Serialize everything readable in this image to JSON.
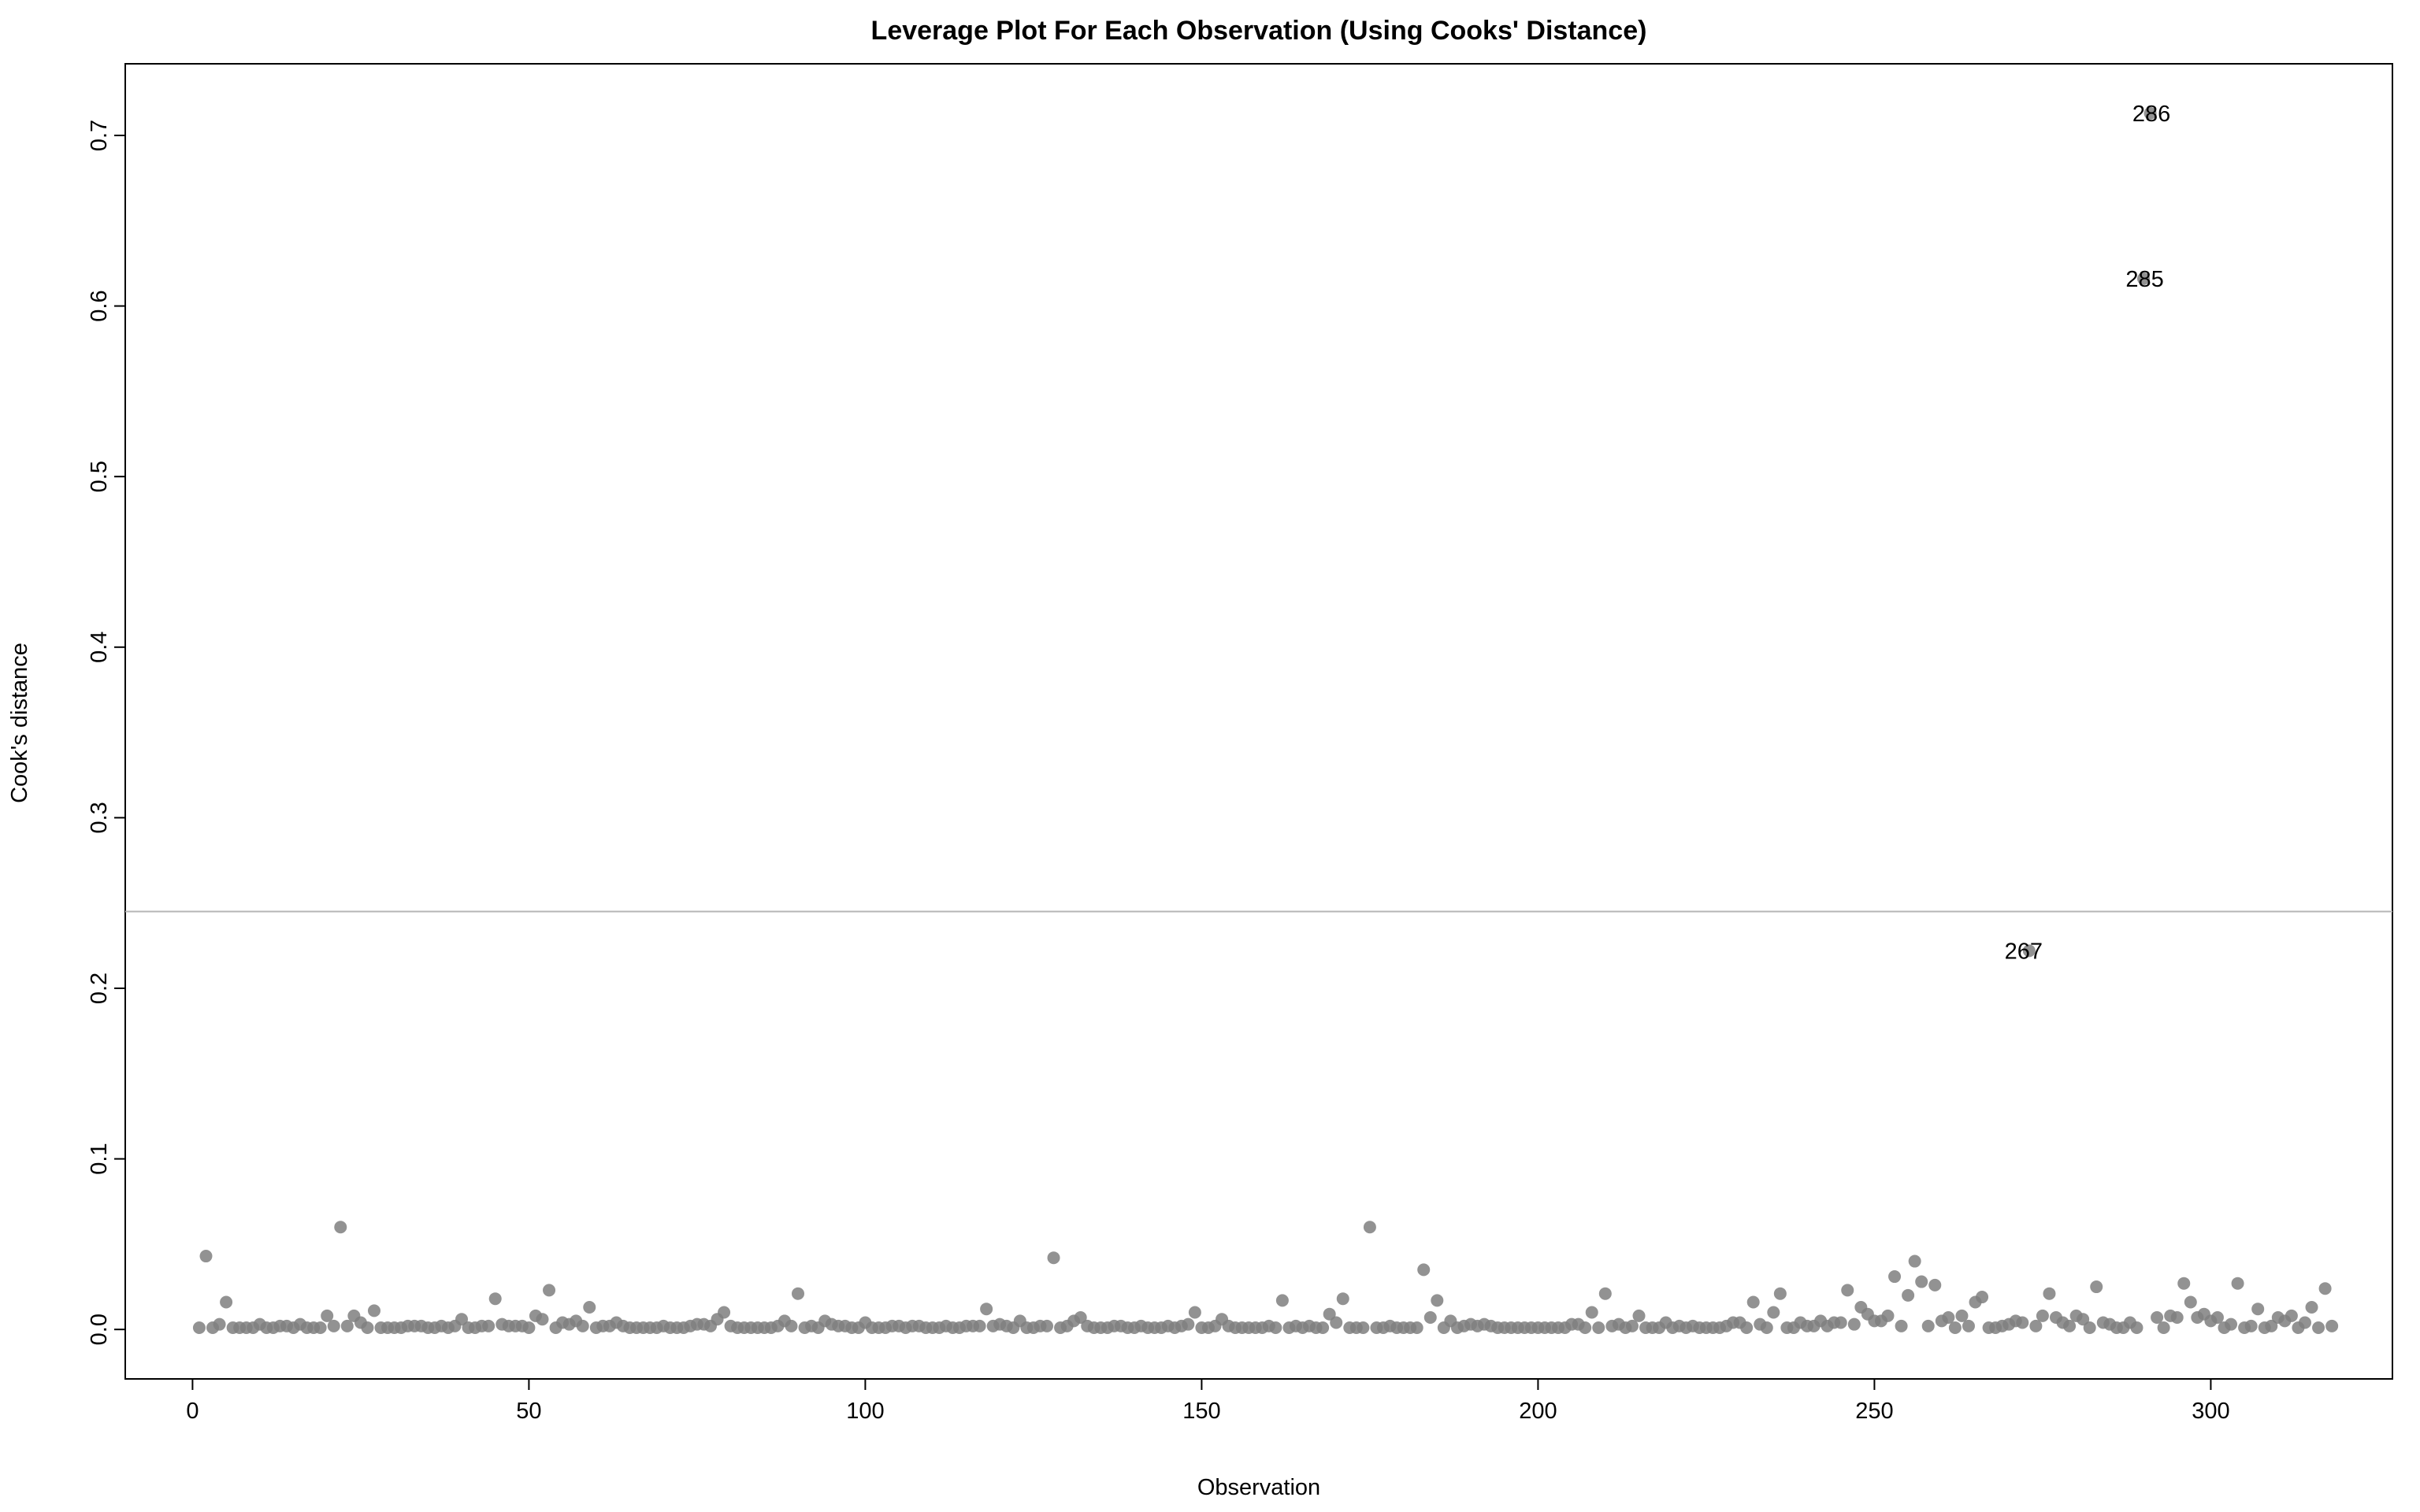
{
  "chart_data": {
    "type": "scatter",
    "title": "Leverage Plot For Each Observation (Using Cooks' Distance)",
    "xlabel": "Observation",
    "ylabel": "Cook's distance",
    "xlim": [
      -10,
      327
    ],
    "ylim": [
      -0.029,
      0.742
    ],
    "xticks": [
      0,
      50,
      100,
      150,
      200,
      250,
      300
    ],
    "yticks": [
      0.0,
      0.1,
      0.2,
      0.3,
      0.4,
      0.5,
      0.6,
      0.7
    ],
    "xtick_labels": [
      "0",
      "50",
      "100",
      "150",
      "200",
      "250",
      "300"
    ],
    "ytick_labels": [
      "0.0",
      "0.1",
      "0.2",
      "0.3",
      "0.4",
      "0.5",
      "0.6",
      "0.7"
    ],
    "grid": false,
    "legend": "none",
    "threshold_line": {
      "y": 0.245,
      "color": "#b5b5b5"
    },
    "point_color": "#7f7f7f",
    "y": [
      0.001,
      0.043,
      0.001,
      0.003,
      0.016,
      0.001,
      0.001,
      0.001,
      0.001,
      0.003,
      0.001,
      0.001,
      0.002,
      0.002,
      0.001,
      0.003,
      0.001,
      0.001,
      0.001,
      0.008,
      0.002,
      0.06,
      0.002,
      0.008,
      0.004,
      0.001,
      0.011,
      0.001,
      0.001,
      0.001,
      0.001,
      0.002,
      0.002,
      0.002,
      0.001,
      0.001,
      0.002,
      0.001,
      0.002,
      0.006,
      0.001,
      0.001,
      0.002,
      0.002,
      0.018,
      0.003,
      0.002,
      0.002,
      0.002,
      0.001,
      0.008,
      0.006,
      0.023,
      0.001,
      0.004,
      0.003,
      0.005,
      0.002,
      0.013,
      0.001,
      0.002,
      0.002,
      0.004,
      0.002,
      0.001,
      0.001,
      0.001,
      0.001,
      0.001,
      0.002,
      0.001,
      0.001,
      0.001,
      0.002,
      0.003,
      0.003,
      0.002,
      0.006,
      0.01,
      0.002,
      0.001,
      0.001,
      0.001,
      0.001,
      0.001,
      0.001,
      0.002,
      0.005,
      0.002,
      0.021,
      0.001,
      0.002,
      0.001,
      0.005,
      0.003,
      0.002,
      0.002,
      0.001,
      0.001,
      0.004,
      0.001,
      0.001,
      0.001,
      0.002,
      0.002,
      0.001,
      0.002,
      0.002,
      0.001,
      0.001,
      0.001,
      0.002,
      0.001,
      0.001,
      0.002,
      0.002,
      0.002,
      0.012,
      0.002,
      0.003,
      0.002,
      0.001,
      0.005,
      0.001,
      0.001,
      0.002,
      0.002,
      0.042,
      0.001,
      0.002,
      0.005,
      0.007,
      0.002,
      0.001,
      0.001,
      0.001,
      0.002,
      0.002,
      0.001,
      0.001,
      0.002,
      0.001,
      0.001,
      0.001,
      0.002,
      0.001,
      0.002,
      0.003,
      0.01,
      0.001,
      0.001,
      0.002,
      0.006,
      0.002,
      0.001,
      0.001,
      0.001,
      0.001,
      0.001,
      0.002,
      0.001,
      0.017,
      0.001,
      0.002,
      0.001,
      0.002,
      0.001,
      0.001,
      0.009,
      0.004,
      0.018,
      0.001,
      0.001,
      0.001,
      0.06,
      0.001,
      0.001,
      0.002,
      0.001,
      0.001,
      0.001,
      0.001,
      0.035,
      0.007,
      0.017,
      0.001,
      0.005,
      0.001,
      0.002,
      0.003,
      0.002,
      0.003,
      0.002,
      0.001,
      0.001,
      0.001,
      0.001,
      0.001,
      0.001,
      0.001,
      0.001,
      0.001,
      0.001,
      0.001,
      0.003,
      0.003,
      0.001,
      0.01,
      0.001,
      0.021,
      0.002,
      0.003,
      0.001,
      0.002,
      0.008,
      0.001,
      0.001,
      0.001,
      0.004,
      0.001,
      0.002,
      0.001,
      0.002,
      0.001,
      0.001,
      0.001,
      0.001,
      0.002,
      0.004,
      0.004,
      0.001,
      0.016,
      0.003,
      0.001,
      0.01,
      0.021,
      0.001,
      0.001,
      0.004,
      0.002,
      0.002,
      0.005,
      0.002,
      0.004,
      0.004,
      0.023,
      0.003,
      0.013,
      0.009,
      0.005,
      0.005,
      0.008,
      0.031,
      0.002,
      0.02,
      0.04,
      0.028,
      0.002,
      0.026,
      0.005,
      0.007,
      0.001,
      0.008,
      0.002,
      0.016,
      0.019,
      0.001,
      0.001,
      0.002,
      0.003,
      0.005,
      0.004,
      0.222,
      0.002,
      0.008,
      0.021,
      0.007,
      0.004,
      0.002,
      0.008,
      0.006,
      0.001,
      0.025,
      0.004,
      0.003,
      0.001,
      0.001,
      0.004,
      0.001,
      0.616,
      0.713,
      0.007,
      0.001,
      0.008,
      0.007,
      0.027,
      0.016,
      0.007,
      0.009,
      0.005,
      0.007,
      0.001,
      0.003,
      0.027,
      0.001,
      0.002,
      0.012,
      0.001,
      0.002,
      0.007,
      0.005,
      0.008,
      0.001,
      0.004,
      0.013,
      0.001,
      0.024,
      0.002
    ],
    "annotations": [
      {
        "x": 267,
        "y": 0.222,
        "text": "267"
      },
      {
        "x": 285,
        "y": 0.616,
        "text": "285"
      },
      {
        "x": 286,
        "y": 0.713,
        "text": "286"
      }
    ]
  }
}
